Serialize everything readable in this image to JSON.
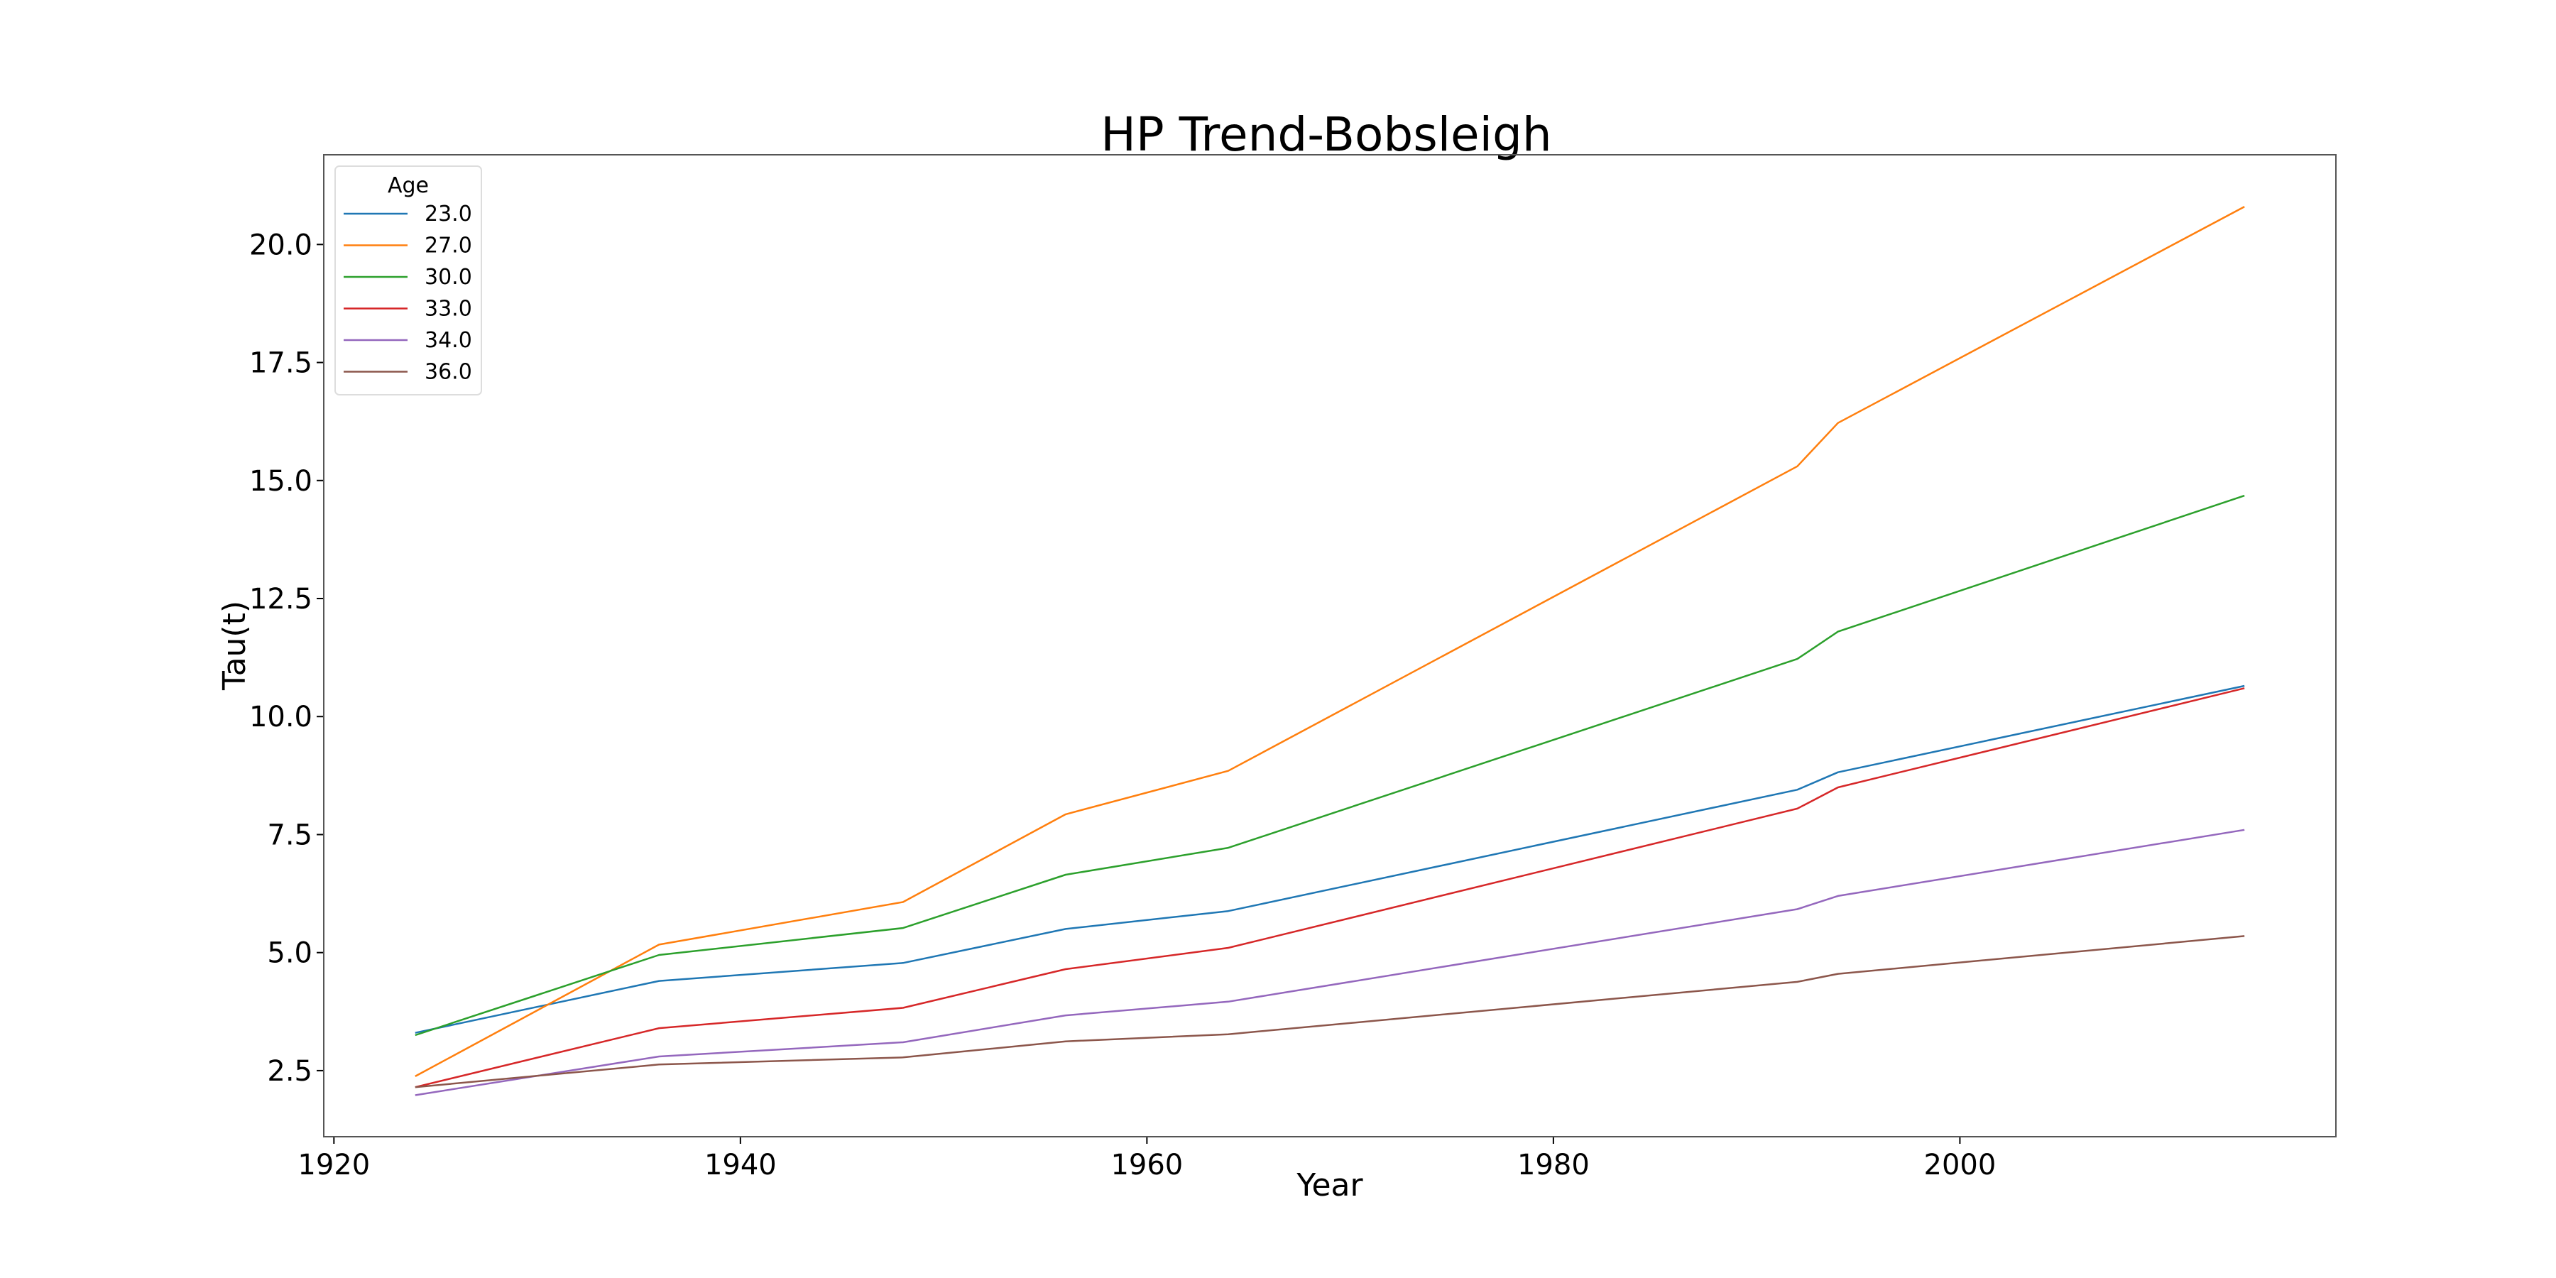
{
  "chart_data": {
    "type": "line",
    "title": "HP Trend-Bobsleigh",
    "xlabel": "Year",
    "ylabel": "Tau(t)",
    "xlim": [
      1919.5,
      2018.5
    ],
    "ylim": [
      1.1,
      21.9
    ],
    "xticks": [
      1920,
      1940,
      1960,
      1980,
      2000
    ],
    "xtick_labels": [
      "1920",
      "1940",
      "1960",
      "1980",
      "2000"
    ],
    "yticks": [
      2.5,
      5.0,
      7.5,
      10.0,
      12.5,
      15.0,
      17.5,
      20.0
    ],
    "ytick_labels": [
      "2.5",
      "5.0",
      "7.5",
      "10.0",
      "12.5",
      "15.0",
      "17.5",
      "20.0"
    ],
    "grid": false,
    "legend": {
      "title": "Age",
      "placement": "top-left"
    },
    "x": [
      1924,
      1936,
      1948,
      1956,
      1964,
      1992,
      1994,
      2014
    ],
    "series": [
      {
        "name": "23.0",
        "color": "#1f77b4",
        "values": [
          3.3,
          4.4,
          4.78,
          5.5,
          5.88,
          8.45,
          8.82,
          10.65
        ]
      },
      {
        "name": "27.0",
        "color": "#ff7f0e",
        "values": [
          2.38,
          5.17,
          6.07,
          7.93,
          8.85,
          15.3,
          16.22,
          20.8
        ]
      },
      {
        "name": "30.0",
        "color": "#2ca02c",
        "values": [
          3.25,
          4.95,
          5.52,
          6.65,
          7.22,
          11.22,
          11.8,
          14.68
        ]
      },
      {
        "name": "33.0",
        "color": "#d62728",
        "values": [
          2.15,
          3.4,
          3.83,
          4.65,
          5.1,
          8.05,
          8.5,
          10.6
        ]
      },
      {
        "name": "34.0",
        "color": "#9467bd",
        "values": [
          1.98,
          2.8,
          3.1,
          3.67,
          3.96,
          5.92,
          6.2,
          7.6
        ]
      },
      {
        "name": "36.0",
        "color": "#8c564b",
        "values": [
          2.15,
          2.63,
          2.78,
          3.12,
          3.27,
          4.38,
          4.55,
          5.35
        ]
      }
    ]
  }
}
